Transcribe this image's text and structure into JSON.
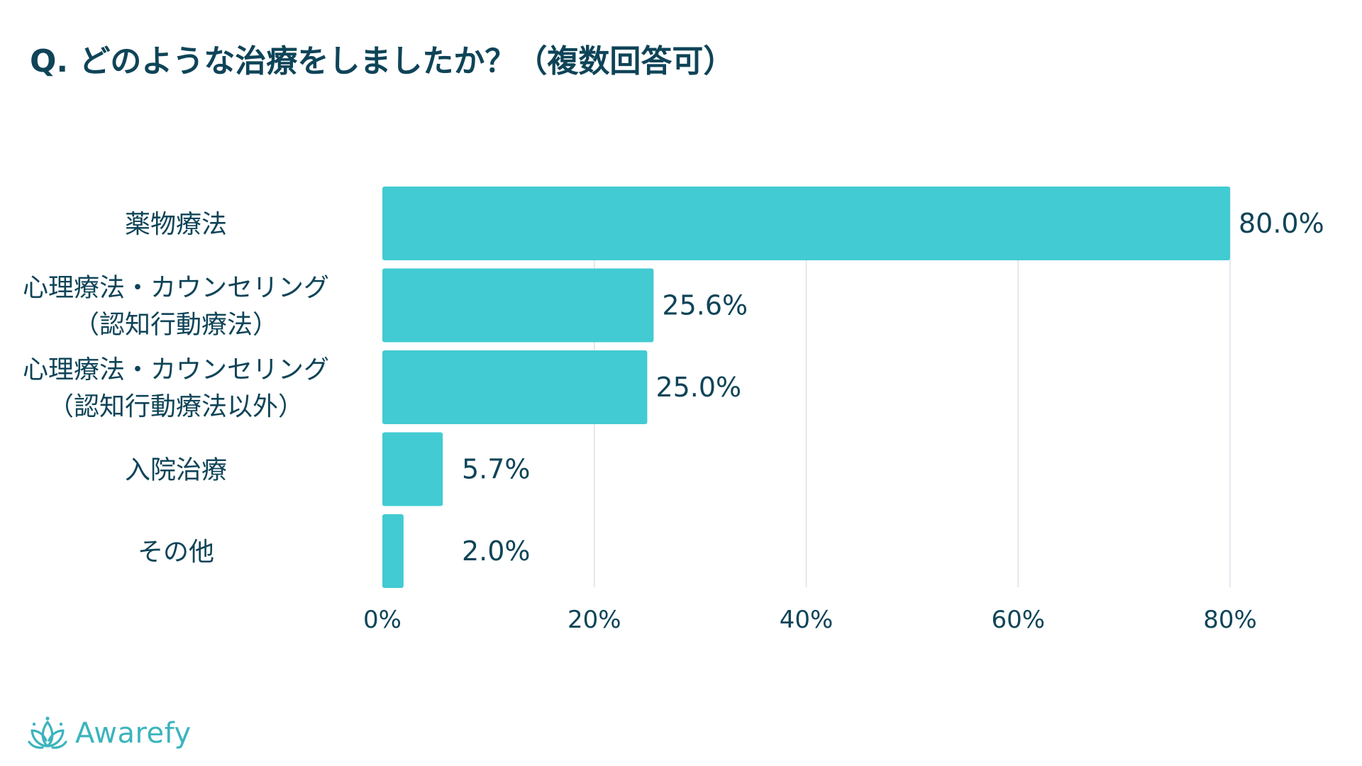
{
  "title": "Q. どのような治療をしましたか？（複数回答可）",
  "brand": {
    "name": "Awarefy",
    "color": "#3bb4bd"
  },
  "colors": {
    "bar": "#42cbd2",
    "grid": "#d9e2e7",
    "text": "#0f4458"
  },
  "chart_data": {
    "type": "bar",
    "orientation": "horizontal",
    "title": "Q. どのような治療をしましたか？（複数回答可）",
    "categories": [
      [
        "薬物療法"
      ],
      [
        "心理療法・カウンセリング",
        "（認知行動療法）"
      ],
      [
        "心理療法・カウンセリング",
        "（認知行動療法以外）"
      ],
      [
        "入院治療"
      ],
      [
        "その他"
      ]
    ],
    "values": [
      80.0,
      25.6,
      25.0,
      5.7,
      2.0
    ],
    "value_labels": [
      "80.0%",
      "25.6%",
      "25.0%",
      "5.7%",
      "2.0%"
    ],
    "xlim": [
      0,
      80
    ],
    "xticks": [
      0,
      20,
      40,
      60,
      80
    ],
    "xtick_labels": [
      "0%",
      "20%",
      "40%",
      "60%",
      "80%"
    ],
    "grid": true,
    "legend": "none"
  }
}
